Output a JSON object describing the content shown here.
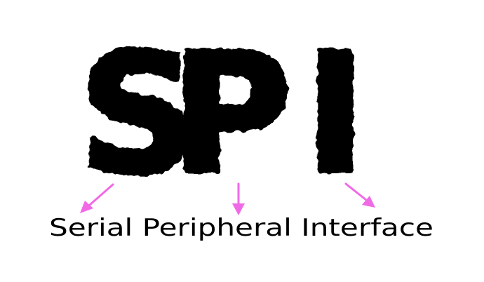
{
  "acronym": {
    "letter_1": "S",
    "letter_2": "P",
    "letter_3": "I"
  },
  "caption": {
    "word_1": "Serial",
    "word_2": "Peripheral",
    "word_3": "Interface"
  },
  "colors": {
    "letters": "#000000",
    "caption": "#000000",
    "arrows": "#f06ae6",
    "background": "#ffffff"
  }
}
